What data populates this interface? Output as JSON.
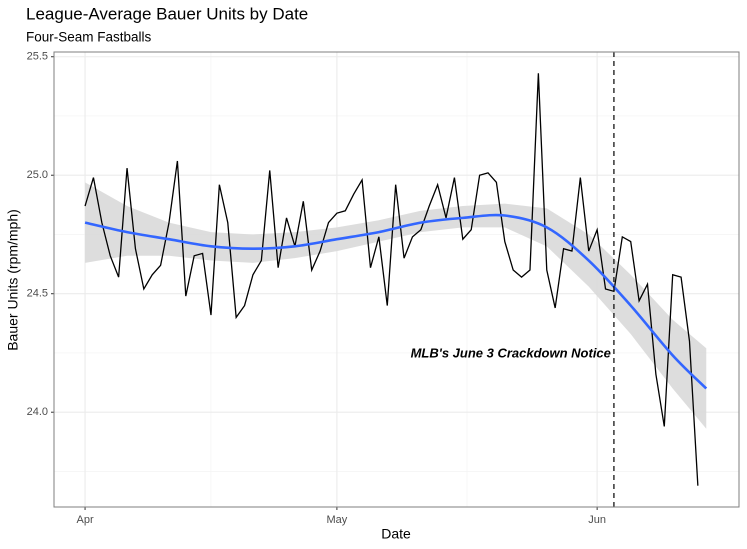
{
  "chart_data": {
    "type": "line",
    "title": "League-Average Bauer Units by Date",
    "subtitle": "Four-Seam Fastballs",
    "x_label": "Date",
    "y_label": "Bauer Units (rpm/mph)",
    "x": [
      0,
      1,
      2,
      3,
      4,
      5,
      6,
      7,
      8,
      9,
      10,
      11,
      12,
      13,
      14,
      15,
      16,
      17,
      18,
      19,
      20,
      21,
      22,
      23,
      24,
      25,
      26,
      27,
      28,
      29,
      30,
      31,
      32,
      33,
      34,
      35,
      36,
      37,
      38,
      39,
      40,
      41,
      42,
      43,
      44,
      45,
      46,
      47,
      48,
      49,
      50,
      51,
      52,
      53,
      54,
      55,
      56,
      57,
      58,
      59,
      60,
      61,
      62,
      63,
      64,
      65,
      66,
      67,
      68,
      69,
      70,
      71,
      72,
      73
    ],
    "values": [
      24.87,
      24.99,
      24.8,
      24.66,
      24.57,
      25.03,
      24.69,
      24.52,
      24.58,
      24.62,
      24.8,
      25.06,
      24.49,
      24.66,
      24.67,
      24.41,
      24.96,
      24.8,
      24.4,
      24.45,
      24.58,
      24.64,
      25.02,
      24.61,
      24.82,
      24.7,
      24.89,
      24.6,
      24.68,
      24.8,
      24.84,
      24.85,
      24.92,
      24.98,
      24.61,
      24.74,
      24.45,
      24.96,
      24.65,
      24.74,
      24.77,
      24.87,
      24.96,
      24.82,
      24.99,
      24.73,
      24.77,
      25.0,
      25.01,
      24.97,
      24.72,
      24.6,
      24.57,
      24.6,
      25.43,
      24.6,
      24.44,
      24.69,
      24.68,
      24.99,
      24.68,
      24.77,
      24.52,
      24.51,
      24.74,
      24.72,
      24.47,
      24.54,
      24.16,
      23.94,
      24.58,
      24.57,
      24.3,
      23.69
    ],
    "color": "#000000",
    "smooth": {
      "x": [
        0,
        5,
        10,
        15,
        20,
        25,
        30,
        35,
        40,
        45,
        50,
        55,
        60,
        65,
        70,
        74
      ],
      "values": [
        24.8,
        24.76,
        24.73,
        24.7,
        24.69,
        24.7,
        24.73,
        24.76,
        24.8,
        24.82,
        24.83,
        24.78,
        24.64,
        24.45,
        24.24,
        24.1
      ],
      "lower": [
        24.63,
        24.66,
        24.66,
        24.64,
        24.63,
        24.65,
        24.68,
        24.72,
        24.76,
        24.78,
        24.78,
        24.7,
        24.53,
        24.33,
        24.1,
        23.93
      ],
      "upper": [
        24.97,
        24.87,
        24.8,
        24.76,
        24.75,
        24.76,
        24.78,
        24.81,
        24.85,
        24.87,
        24.88,
        24.86,
        24.75,
        24.58,
        24.39,
        24.27
      ],
      "color": "#3366ff",
      "band_color": "#d9d9d9"
    },
    "vline": 63,
    "annotation": "MLB's June 3 Crackdown Notice",
    "xlim": [
      -3.7,
      77.9
    ],
    "xticks": [
      {
        "value": 0,
        "label": "Apr"
      },
      {
        "value": 30,
        "label": "May"
      },
      {
        "value": 61,
        "label": "Jun"
      }
    ],
    "ylim": [
      23.6,
      25.52
    ],
    "yticks": [
      {
        "value": 24,
        "label": "24.0"
      },
      24.5,
      {
        "value": 25,
        "label": "25.0"
      },
      25.5
    ],
    "grid": true
  }
}
